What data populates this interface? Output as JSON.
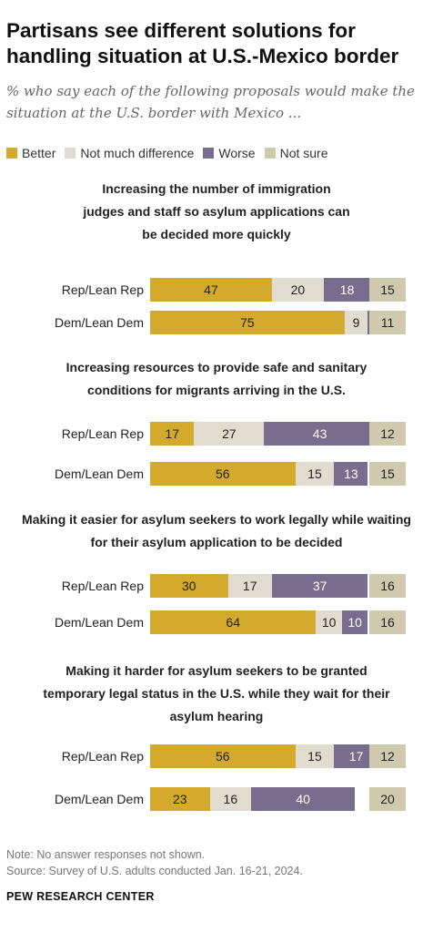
{
  "title": "Partisans see different solutions for handling situation at U.S.-Mexico border",
  "subtitle": "% who say each of the following proposals would make the situation at the U.S. border with Mexico ...",
  "note": "Note: No answer responses not shown.",
  "source": "Source: Survey of U.S. adults conducted Jan. 16-21, 2024.",
  "footer": "PEW RESEARCH CENTER",
  "colors": {
    "better": "#d4aa2c",
    "not_much_difference": "#e0ddd0",
    "worse": "#786d8c",
    "not_sure": "#cfc9ad"
  },
  "chart_data": {
    "type": "bar",
    "stacked": true,
    "orientation": "horizontal",
    "legend": [
      "Better",
      "Not much difference",
      "Worse",
      "Not sure"
    ],
    "legend_position": "top-left",
    "grid": false,
    "panels": [
      {
        "title": "Increasing the number of immigration judges and staff so asylum applications can be decided more quickly",
        "rows": [
          {
            "label": "Rep/Lean Rep",
            "better": 47,
            "not_much_difference": 20,
            "worse": 18,
            "not_sure": 15
          },
          {
            "label": "Dem/Lean Dem",
            "better": 75,
            "not_much_difference": 9,
            "worse": 5,
            "not_sure": 11
          }
        ]
      },
      {
        "title": "Increasing resources to provide safe and sanitary conditions for migrants arriving in the U.S.",
        "rows": [
          {
            "label": "Rep/Lean Rep",
            "better": 17,
            "not_much_difference": 27,
            "worse": 43,
            "not_sure": 12
          },
          {
            "label": "Dem/Lean Dem",
            "better": 56,
            "not_much_difference": 15,
            "worse": 13,
            "not_sure": 15
          }
        ]
      },
      {
        "title": "Making it easier for asylum seekers to work legally while waiting for their asylum application to be decided",
        "rows": [
          {
            "label": "Rep/Lean Rep",
            "better": 30,
            "not_much_difference": 17,
            "worse": 37,
            "not_sure": 16
          },
          {
            "label": "Dem/Lean Dem",
            "better": 64,
            "not_much_difference": 10,
            "worse": 10,
            "not_sure": 16
          }
        ]
      },
      {
        "title": "Making it harder for asylum seekers to be granted temporary legal status in the U.S. while they wait for their asylum hearing",
        "rows": [
          {
            "label": "Rep/Lean Rep",
            "better": 56,
            "not_much_difference": 15,
            "worse": 17,
            "not_sure": 12
          },
          {
            "label": "Dem/Lean Dem",
            "better": 23,
            "not_much_difference": 16,
            "worse": 40,
            "not_sure": 20
          }
        ]
      }
    ]
  }
}
